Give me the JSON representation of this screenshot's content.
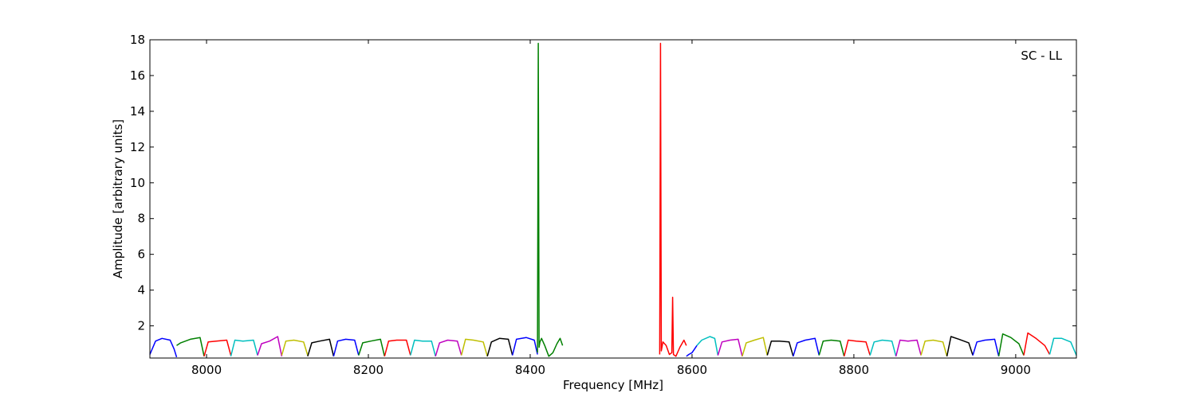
{
  "chart_data": {
    "type": "line",
    "title": "",
    "annotation": "SC - LL",
    "xlabel": "Frequency [MHz]",
    "ylabel": "Amplitude [arbitrary units]",
    "xlim": [
      7930,
      9075
    ],
    "ylim": [
      0.2,
      18
    ],
    "x_ticks": [
      8000,
      8200,
      8400,
      8600,
      8800,
      9000
    ],
    "y_ticks": [
      2,
      4,
      6,
      8,
      10,
      12,
      14,
      16,
      18
    ],
    "grid": false,
    "legend": "none",
    "colors": {
      "blue": "#0000ff",
      "green": "#008000",
      "red": "#ff0000",
      "cyan": "#00bfbf",
      "magenta": "#bf00bf",
      "olive": "#bfbf00",
      "black": "#000000"
    },
    "series": [
      {
        "color": "blue",
        "x": [
          7930,
          7937,
          7945,
          7955,
          7960,
          7963
        ],
        "y": [
          0.4,
          1.15,
          1.3,
          1.2,
          0.7,
          0.25
        ]
      },
      {
        "color": "green",
        "x": [
          7963,
          7968,
          7980,
          7992,
          7997
        ],
        "y": [
          0.9,
          1.05,
          1.25,
          1.35,
          0.3
        ]
      },
      {
        "color": "red",
        "x": [
          7997,
          8002,
          8012,
          8025,
          8030
        ],
        "y": [
          0.3,
          1.1,
          1.15,
          1.2,
          0.35
        ]
      },
      {
        "color": "cyan",
        "x": [
          8030,
          8035,
          8045,
          8058,
          8063
        ],
        "y": [
          0.3,
          1.2,
          1.15,
          1.2,
          0.35
        ]
      },
      {
        "color": "magenta",
        "x": [
          8063,
          8068,
          8078,
          8088,
          8093
        ],
        "y": [
          0.35,
          1.0,
          1.15,
          1.4,
          0.3
        ]
      },
      {
        "color": "olive",
        "x": [
          8093,
          8098,
          8108,
          8120,
          8125
        ],
        "y": [
          0.35,
          1.15,
          1.2,
          1.1,
          0.35
        ]
      },
      {
        "color": "black",
        "x": [
          8125,
          8130,
          8140,
          8152,
          8157
        ],
        "y": [
          0.3,
          1.05,
          1.15,
          1.25,
          0.3
        ]
      },
      {
        "color": "blue",
        "x": [
          8157,
          8162,
          8172,
          8183,
          8188
        ],
        "y": [
          0.3,
          1.15,
          1.25,
          1.2,
          0.35
        ]
      },
      {
        "color": "green",
        "x": [
          8188,
          8193,
          8203,
          8215,
          8220
        ],
        "y": [
          0.35,
          1.05,
          1.15,
          1.25,
          0.3
        ]
      },
      {
        "color": "red",
        "x": [
          8220,
          8225,
          8235,
          8247,
          8252
        ],
        "y": [
          0.3,
          1.15,
          1.2,
          1.2,
          0.35
        ]
      },
      {
        "color": "cyan",
        "x": [
          8252,
          8257,
          8267,
          8278,
          8283
        ],
        "y": [
          0.35,
          1.2,
          1.15,
          1.15,
          0.3
        ]
      },
      {
        "color": "magenta",
        "x": [
          8283,
          8288,
          8298,
          8310,
          8315
        ],
        "y": [
          0.3,
          1.05,
          1.2,
          1.15,
          0.35
        ]
      },
      {
        "color": "olive",
        "x": [
          8315,
          8320,
          8330,
          8342,
          8347
        ],
        "y": [
          0.35,
          1.25,
          1.2,
          1.1,
          0.3
        ]
      },
      {
        "color": "black",
        "x": [
          8347,
          8352,
          8362,
          8373,
          8378
        ],
        "y": [
          0.3,
          1.1,
          1.3,
          1.25,
          0.35
        ]
      },
      {
        "color": "blue",
        "x": [
          8378,
          8383,
          8395,
          8405,
          8409
        ],
        "y": [
          0.35,
          1.25,
          1.35,
          1.2,
          0.4
        ]
      },
      {
        "color": "green",
        "x": [
          8409,
          8410,
          8411,
          8412,
          8414,
          8418,
          8423,
          8428,
          8433,
          8437,
          8440
        ],
        "y": [
          0.5,
          17.8,
          0.8,
          1.1,
          1.3,
          0.9,
          0.3,
          0.5,
          1.0,
          1.3,
          0.9
        ]
      },
      {
        "color": "red",
        "x": [
          8560,
          8561,
          8562,
          8564,
          8568,
          8572,
          8575,
          8576,
          8577,
          8580,
          8585,
          8590,
          8593
        ],
        "y": [
          0.4,
          17.8,
          0.6,
          1.1,
          0.9,
          0.4,
          0.5,
          3.6,
          0.4,
          0.3,
          0.8,
          1.2,
          0.9
        ]
      },
      {
        "color": "blue",
        "x": [
          8593,
          8596,
          8600,
          8603,
          8606
        ],
        "y": [
          0.3,
          0.4,
          0.5,
          0.7,
          0.9
        ]
      },
      {
        "color": "cyan",
        "x": [
          8606,
          8612,
          8622,
          8628,
          8632
        ],
        "y": [
          0.9,
          1.2,
          1.4,
          1.3,
          0.35
        ]
      },
      {
        "color": "magenta",
        "x": [
          8632,
          8637,
          8647,
          8657,
          8662
        ],
        "y": [
          0.35,
          1.1,
          1.2,
          1.25,
          0.3
        ]
      },
      {
        "color": "olive",
        "x": [
          8662,
          8667,
          8677,
          8688,
          8693
        ],
        "y": [
          0.3,
          1.05,
          1.2,
          1.35,
          0.35
        ]
      },
      {
        "color": "black",
        "x": [
          8693,
          8698,
          8708,
          8720,
          8725
        ],
        "y": [
          0.35,
          1.15,
          1.15,
          1.1,
          0.3
        ]
      },
      {
        "color": "blue",
        "x": [
          8725,
          8730,
          8740,
          8752,
          8757
        ],
        "y": [
          0.3,
          1.05,
          1.2,
          1.3,
          0.35
        ]
      },
      {
        "color": "green",
        "x": [
          8757,
          8762,
          8772,
          8783,
          8788
        ],
        "y": [
          0.35,
          1.15,
          1.2,
          1.15,
          0.3
        ]
      },
      {
        "color": "red",
        "x": [
          8788,
          8793,
          8803,
          8815,
          8820
        ],
        "y": [
          0.3,
          1.2,
          1.15,
          1.1,
          0.35
        ]
      },
      {
        "color": "cyan",
        "x": [
          8820,
          8825,
          8835,
          8847,
          8852
        ],
        "y": [
          0.35,
          1.1,
          1.2,
          1.15,
          0.3
        ]
      },
      {
        "color": "magenta",
        "x": [
          8852,
          8857,
          8867,
          8878,
          8883
        ],
        "y": [
          0.3,
          1.2,
          1.15,
          1.2,
          0.35
        ]
      },
      {
        "color": "olive",
        "x": [
          8883,
          8888,
          8898,
          8910,
          8915
        ],
        "y": [
          0.35,
          1.15,
          1.2,
          1.1,
          0.3
        ]
      },
      {
        "color": "black",
        "x": [
          8915,
          8920,
          8930,
          8942,
          8947
        ],
        "y": [
          0.3,
          1.4,
          1.25,
          1.05,
          0.35
        ]
      },
      {
        "color": "blue",
        "x": [
          8947,
          8952,
          8962,
          8974,
          8979
        ],
        "y": [
          0.35,
          1.1,
          1.2,
          1.25,
          0.3
        ]
      },
      {
        "color": "green",
        "x": [
          8979,
          8984,
          8994,
          9004,
          9010
        ],
        "y": [
          0.3,
          1.55,
          1.35,
          1.0,
          0.35
        ]
      },
      {
        "color": "red",
        "x": [
          9010,
          9015,
          9025,
          9036,
          9042
        ],
        "y": [
          0.35,
          1.6,
          1.3,
          0.9,
          0.4
        ]
      },
      {
        "color": "cyan",
        "x": [
          9042,
          9047,
          9057,
          9068,
          9075
        ],
        "y": [
          0.4,
          1.3,
          1.3,
          1.1,
          0.35
        ]
      }
    ]
  }
}
